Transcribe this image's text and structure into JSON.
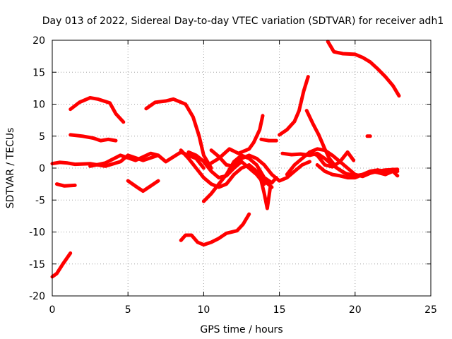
{
  "chart_data": {
    "type": "line",
    "title": "Day 013 of 2022, Sidereal Day-to-day VTEC variation (SDTVAR) for receiver adh1",
    "xlabel": "GPS time / hours",
    "ylabel": "SDTVAR / TECUs",
    "xlim": [
      0,
      25
    ],
    "ylim": [
      -20,
      20
    ],
    "xticks": [
      0,
      5,
      10,
      15,
      20,
      25
    ],
    "yticks": [
      -20,
      -15,
      -10,
      -5,
      0,
      5,
      10,
      15,
      20
    ],
    "grid": true,
    "color": "#ff0000",
    "series": [
      {
        "name": "s1",
        "points": [
          [
            0.0,
            -17.0
          ],
          [
            0.3,
            -16.5
          ],
          [
            0.7,
            -15.0
          ],
          [
            1.2,
            -13.3
          ]
        ]
      },
      {
        "name": "s2",
        "points": [
          [
            0.0,
            0.7
          ],
          [
            0.5,
            0.9
          ],
          [
            1.0,
            0.8
          ],
          [
            1.5,
            0.6
          ],
          [
            2.5,
            0.7
          ],
          [
            3.5,
            0.3
          ],
          [
            4.5,
            1.0
          ],
          [
            5.0,
            2.0
          ],
          [
            6.0,
            1.2
          ],
          [
            7.0,
            2.0
          ],
          [
            7.5,
            1.0
          ],
          [
            8.5,
            2.5
          ],
          [
            9.5,
            1.5
          ],
          [
            10.0,
            0.0
          ]
        ]
      },
      {
        "name": "s3",
        "points": [
          [
            0.3,
            -2.5
          ],
          [
            0.8,
            -2.8
          ],
          [
            1.5,
            -2.7
          ]
        ]
      },
      {
        "name": "s4",
        "points": [
          [
            1.2,
            9.2
          ],
          [
            1.8,
            10.3
          ],
          [
            2.5,
            11.0
          ],
          [
            3.0,
            10.8
          ],
          [
            3.8,
            10.2
          ],
          [
            4.2,
            8.5
          ],
          [
            4.7,
            7.2
          ]
        ]
      },
      {
        "name": "s5",
        "points": [
          [
            1.2,
            5.2
          ],
          [
            2.0,
            5.0
          ],
          [
            2.7,
            4.7
          ],
          [
            3.2,
            4.3
          ],
          [
            3.7,
            4.5
          ],
          [
            4.2,
            4.3
          ]
        ]
      },
      {
        "name": "s6",
        "points": [
          [
            2.5,
            0.3
          ],
          [
            3.5,
            0.8
          ],
          [
            4.5,
            2.0
          ],
          [
            5.5,
            1.2
          ],
          [
            6.5,
            2.3
          ],
          [
            7.0,
            2.0
          ]
        ]
      },
      {
        "name": "s7",
        "points": [
          [
            5.0,
            -2.0
          ],
          [
            5.6,
            -3.0
          ],
          [
            6.0,
            -3.6
          ],
          [
            6.5,
            -2.8
          ],
          [
            7.0,
            -2.0
          ]
        ]
      },
      {
        "name": "s8",
        "points": [
          [
            6.2,
            9.3
          ],
          [
            6.8,
            10.3
          ],
          [
            7.5,
            10.5
          ],
          [
            8.0,
            10.8
          ],
          [
            8.8,
            10.0
          ],
          [
            9.3,
            8.0
          ],
          [
            9.7,
            5.0
          ],
          [
            10.0,
            2.0
          ],
          [
            10.5,
            0.0
          ]
        ]
      },
      {
        "name": "s9",
        "points": [
          [
            8.5,
            -11.3
          ],
          [
            8.8,
            -10.5
          ],
          [
            9.2,
            -10.5
          ],
          [
            9.6,
            -11.6
          ],
          [
            10.0,
            -12.0
          ],
          [
            10.5,
            -11.6
          ],
          [
            11.0,
            -11.0
          ],
          [
            11.5,
            -10.2
          ],
          [
            12.2,
            -9.8
          ],
          [
            12.6,
            -8.8
          ],
          [
            13.0,
            -7.2
          ]
        ]
      },
      {
        "name": "s10",
        "points": [
          [
            9.0,
            2.5
          ],
          [
            9.5,
            2.0
          ],
          [
            10.3,
            0.5
          ],
          [
            11.0,
            1.5
          ],
          [
            11.7,
            3.0
          ],
          [
            12.3,
            2.3
          ],
          [
            13.0,
            3.0
          ],
          [
            13.3,
            4.0
          ],
          [
            13.7,
            6.0
          ],
          [
            13.9,
            8.2
          ]
        ]
      },
      {
        "name": "s11",
        "points": [
          [
            8.5,
            2.8
          ],
          [
            9.0,
            1.5
          ],
          [
            9.5,
            0.0
          ],
          [
            10.0,
            -1.5
          ],
          [
            10.5,
            -2.5
          ],
          [
            11.0,
            -3.0
          ],
          [
            11.5,
            -2.5
          ],
          [
            12.0,
            -1.0
          ],
          [
            12.5,
            0.0
          ],
          [
            13.0,
            0.5
          ],
          [
            13.5,
            -0.5
          ],
          [
            14.0,
            -2.0
          ],
          [
            14.5,
            -3.0
          ]
        ]
      },
      {
        "name": "s12",
        "points": [
          [
            10.0,
            -5.2
          ],
          [
            10.5,
            -4.0
          ],
          [
            11.0,
            -2.5
          ],
          [
            11.5,
            -1.0
          ],
          [
            12.0,
            1.0
          ],
          [
            12.5,
            2.0
          ],
          [
            13.0,
            1.5
          ],
          [
            13.5,
            0.5
          ],
          [
            14.0,
            -1.5
          ],
          [
            14.5,
            -2.3
          ],
          [
            14.8,
            -1.5
          ]
        ]
      },
      {
        "name": "s13",
        "points": [
          [
            10.0,
            1.0
          ],
          [
            10.5,
            -0.5
          ],
          [
            11.0,
            -1.5
          ],
          [
            11.5,
            -1.2
          ],
          [
            12.0,
            0.0
          ],
          [
            12.5,
            1.0
          ],
          [
            13.0,
            0.0
          ],
          [
            13.5,
            -1.0
          ],
          [
            14.0,
            -2.5
          ]
        ]
      },
      {
        "name": "s14",
        "points": [
          [
            10.5,
            2.8
          ],
          [
            11.0,
            1.8
          ],
          [
            11.5,
            0.5
          ],
          [
            12.0,
            0.3
          ],
          [
            12.5,
            1.5
          ],
          [
            13.0,
            2.0
          ],
          [
            13.5,
            1.5
          ],
          [
            14.0,
            0.5
          ],
          [
            14.5,
            -1.0
          ],
          [
            15.0,
            -2.0
          ],
          [
            15.5,
            -1.5
          ],
          [
            16.0,
            -0.5
          ],
          [
            16.5,
            0.5
          ],
          [
            17.0,
            1.0
          ]
        ]
      },
      {
        "name": "s15",
        "points": [
          [
            13.7,
            -1.0
          ],
          [
            14.0,
            -4.0
          ],
          [
            14.2,
            -6.3
          ],
          [
            14.4,
            -3.0
          ]
        ]
      },
      {
        "name": "s16",
        "points": [
          [
            13.8,
            4.5
          ],
          [
            14.3,
            4.3
          ],
          [
            14.8,
            4.3
          ]
        ]
      },
      {
        "name": "s17",
        "points": [
          [
            15.0,
            5.2
          ],
          [
            15.5,
            6.0
          ],
          [
            16.0,
            7.3
          ],
          [
            16.3,
            9.0
          ],
          [
            16.6,
            12.0
          ],
          [
            16.9,
            14.3
          ]
        ]
      },
      {
        "name": "s18",
        "points": [
          [
            15.2,
            2.3
          ],
          [
            15.8,
            2.1
          ],
          [
            16.4,
            2.2
          ],
          [
            17.0,
            2.0
          ],
          [
            17.5,
            2.3
          ],
          [
            18.0,
            1.5
          ],
          [
            18.5,
            0.5
          ],
          [
            19.0,
            -0.3
          ],
          [
            19.5,
            -1.0
          ]
        ]
      },
      {
        "name": "s19",
        "points": [
          [
            15.5,
            -1.0
          ],
          [
            16.0,
            0.5
          ],
          [
            16.5,
            1.5
          ],
          [
            17.0,
            2.5
          ],
          [
            17.5,
            2.0
          ],
          [
            18.0,
            0.5
          ],
          [
            18.5,
            0.2
          ],
          [
            19.0,
            1.0
          ],
          [
            19.5,
            2.5
          ],
          [
            19.9,
            1.2
          ]
        ]
      },
      {
        "name": "s20",
        "points": [
          [
            16.8,
            9.0
          ],
          [
            17.2,
            7.0
          ],
          [
            17.6,
            5.2
          ],
          [
            18.0,
            3.0
          ],
          [
            18.3,
            1.5
          ],
          [
            18.8,
            0.0
          ],
          [
            19.3,
            -0.8
          ],
          [
            20.0,
            -1.2
          ],
          [
            20.5,
            -1.0
          ],
          [
            21.0,
            -0.5
          ],
          [
            21.5,
            -0.3
          ],
          [
            22.0,
            -0.6
          ],
          [
            22.5,
            -0.2
          ],
          [
            22.8,
            -0.5
          ]
        ]
      },
      {
        "name": "s21",
        "points": [
          [
            17.0,
            2.5
          ],
          [
            17.5,
            3.0
          ],
          [
            18.0,
            2.8
          ],
          [
            18.5,
            2.0
          ],
          [
            19.0,
            1.0
          ],
          [
            19.5,
            0.0
          ],
          [
            20.0,
            -1.0
          ],
          [
            20.5,
            -1.3
          ],
          [
            21.0,
            -0.8
          ],
          [
            21.5,
            -0.5
          ],
          [
            22.0,
            -0.3
          ],
          [
            22.8,
            -0.2
          ]
        ]
      },
      {
        "name": "s22",
        "points": [
          [
            17.5,
            0.5
          ],
          [
            18.0,
            -0.5
          ],
          [
            18.5,
            -1.0
          ],
          [
            19.0,
            -1.2
          ],
          [
            19.5,
            -1.5
          ],
          [
            20.0,
            -1.5
          ],
          [
            20.5,
            -1.0
          ],
          [
            21.0,
            -0.5
          ],
          [
            21.5,
            -0.7
          ],
          [
            22.0,
            -1.0
          ],
          [
            22.5,
            -0.5
          ],
          [
            22.8,
            -1.2
          ]
        ]
      },
      {
        "name": "s23",
        "points": [
          [
            20.8,
            5.0
          ],
          [
            21.0,
            5.0
          ]
        ]
      },
      {
        "name": "s24",
        "points": [
          [
            18.2,
            19.8
          ],
          [
            18.6,
            18.2
          ],
          [
            19.2,
            17.9
          ],
          [
            20.0,
            17.8
          ],
          [
            20.5,
            17.3
          ],
          [
            21.0,
            16.6
          ],
          [
            21.5,
            15.5
          ],
          [
            22.0,
            14.3
          ],
          [
            22.5,
            12.9
          ],
          [
            22.9,
            11.3
          ]
        ]
      }
    ]
  }
}
